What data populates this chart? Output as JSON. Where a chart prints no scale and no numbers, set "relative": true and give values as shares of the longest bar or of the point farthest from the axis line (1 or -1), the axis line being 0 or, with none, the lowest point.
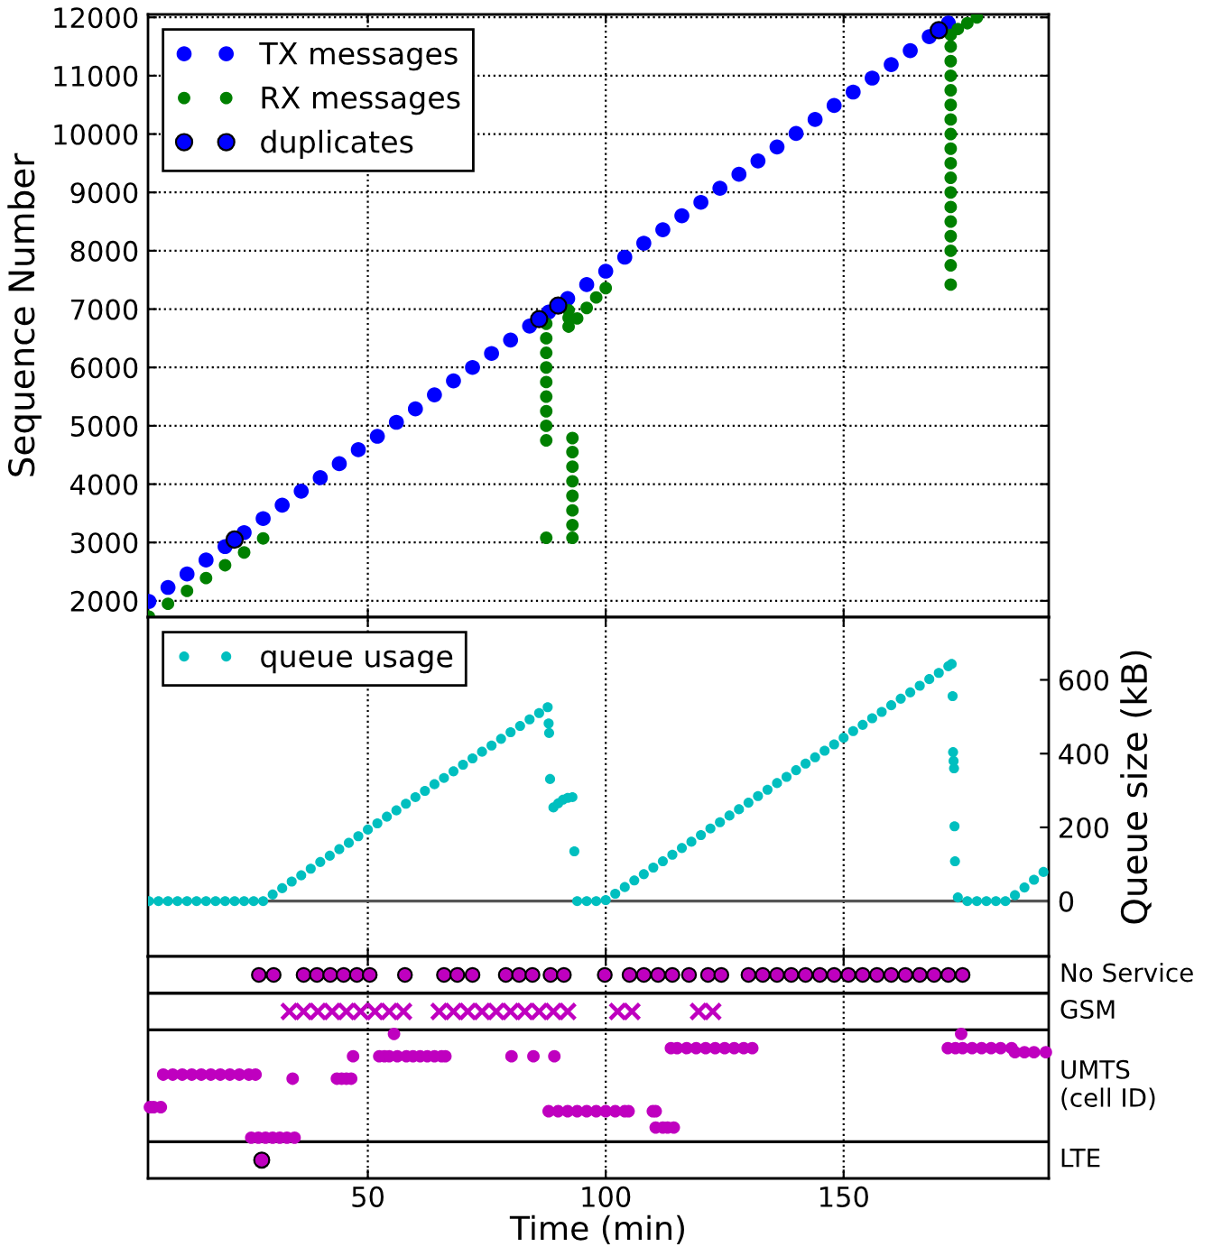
{
  "chart_data": [
    {
      "type": "scatter",
      "ylabel": "Sequence Number",
      "xlim": [
        3.8,
        193.1
      ],
      "xticks": [
        50,
        100,
        150
      ],
      "ylim": [
        1720,
        12050
      ],
      "yticks": [
        2000,
        3000,
        4000,
        5000,
        6000,
        7000,
        8000,
        9000,
        10000,
        11000,
        12000
      ],
      "grid": true,
      "legend": "top left",
      "tick_labels": "y",
      "marker": "circle",
      "series": [
        {
          "name": "TX messages",
          "color": "#0000ff",
          "x": [
            4,
            8,
            12,
            16,
            20,
            24,
            28,
            32,
            36,
            40,
            44,
            48,
            52,
            56,
            60,
            64,
            68,
            72,
            76,
            80,
            84,
            88,
            92,
            96,
            100,
            104,
            108,
            112,
            116,
            120,
            124,
            128,
            132,
            136,
            140,
            144,
            148,
            152,
            156,
            160,
            164,
            168,
            172
          ],
          "values": [
            1990,
            2230,
            2460,
            2700,
            2930,
            3170,
            3410,
            3640,
            3880,
            4110,
            4350,
            4590,
            4820,
            5060,
            5290,
            5530,
            5770,
            6000,
            6240,
            6470,
            6710,
            6950,
            7180,
            7420,
            7650,
            7890,
            8130,
            8360,
            8600,
            8830,
            9070,
            9310,
            9540,
            9780,
            10010,
            10250,
            10490,
            10720,
            10960,
            11190,
            11430,
            11670,
            11900
          ]
        },
        {
          "name": "RX messages",
          "color": "#008000",
          "x": [
            4,
            8,
            12,
            16,
            20,
            24,
            28,
            87.5,
            87.5,
            87.5,
            87.5,
            87.5,
            87.5,
            87.5,
            87.5,
            87.5,
            87.5,
            93,
            93,
            93,
            93,
            93,
            93,
            93,
            93,
            92.2,
            92.2,
            92.2,
            94,
            96,
            98,
            100,
            172.5,
            172.5,
            172.5,
            172.5,
            172.5,
            172.5,
            172.5,
            172.5,
            172.5,
            172.5,
            172.5,
            172.5,
            172.5,
            172.5,
            172.5,
            172.5,
            172.5,
            172.5,
            174,
            176,
            178
          ],
          "values": [
            1730,
            1950,
            2170,
            2390,
            2610,
            2830,
            3070,
            3080,
            4750,
            5000,
            5250,
            5500,
            5750,
            6000,
            6250,
            6500,
            6750,
            3080,
            3300,
            3550,
            3800,
            4050,
            4300,
            4550,
            4790,
            6700,
            6850,
            6980,
            6840,
            7020,
            7200,
            7360,
            7420,
            7750,
            8000,
            8250,
            8500,
            8750,
            9000,
            9250,
            9500,
            9750,
            10000,
            10250,
            10500,
            10750,
            11000,
            11250,
            11500,
            11700,
            11800,
            11900,
            12000
          ]
        },
        {
          "name": "duplicates",
          "color": "#0000ff",
          "x": [
            22,
            86,
            90,
            170
          ],
          "values": [
            3050,
            6830,
            7060,
            11780
          ]
        }
      ]
    },
    {
      "type": "scatter",
      "ylabel": "Queue size (kB)",
      "xlim": [
        3.8,
        193.1
      ],
      "xticks": [
        50,
        100,
        150
      ],
      "ylim": [
        -150,
        770
      ],
      "yticks": [
        0,
        200,
        400,
        600
      ],
      "grid": "x",
      "legend": "top left",
      "tick_labels": "y",
      "marker": "circle",
      "ref_lines": [
        {
          "axis": "y",
          "value": 0,
          "color": "#555555"
        }
      ],
      "series": [
        {
          "name": "queue usage",
          "color": "#00bfbf",
          "x": [
            4,
            6,
            8,
            10,
            12,
            14,
            16,
            18,
            20,
            22,
            24,
            26,
            28,
            30,
            32,
            34,
            36,
            38,
            40,
            42,
            44,
            46,
            48,
            50,
            52,
            54,
            56,
            58,
            60,
            62,
            64,
            66,
            68,
            70,
            72,
            74,
            76,
            78,
            80,
            82,
            84,
            86,
            87.8,
            88,
            88.1,
            88.3,
            89,
            90,
            91,
            92,
            93,
            93.4,
            94,
            96,
            98,
            100,
            102,
            104,
            106,
            108,
            110,
            112,
            114,
            116,
            118,
            120,
            122,
            124,
            126,
            128,
            130,
            132,
            134,
            136,
            138,
            140,
            142,
            144,
            146,
            148,
            150,
            152,
            154,
            156,
            158,
            160,
            162,
            164,
            166,
            168,
            170,
            172,
            172.7,
            172.9,
            173,
            173.1,
            173.2,
            173.3,
            173.4,
            174,
            176,
            178,
            180,
            182,
            184,
            186,
            188,
            190,
            192
          ],
          "values": [
            0,
            0,
            0,
            0,
            0,
            0,
            0,
            0,
            0,
            0,
            0,
            0,
            0,
            18,
            35,
            53,
            70,
            88,
            106,
            123,
            141,
            158,
            176,
            194,
            211,
            229,
            246,
            264,
            282,
            299,
            317,
            334,
            352,
            370,
            387,
            405,
            422,
            440,
            458,
            475,
            493,
            510,
            526,
            482,
            456,
            331,
            254,
            265,
            275,
            280,
            282,
            135,
            0,
            0,
            0,
            3,
            20,
            38,
            56,
            73,
            91,
            108,
            126,
            144,
            161,
            179,
            197,
            214,
            232,
            249,
            267,
            285,
            302,
            320,
            337,
            355,
            373,
            390,
            408,
            425,
            443,
            461,
            478,
            496,
            513,
            531,
            549,
            566,
            584,
            602,
            619,
            637,
            643,
            556,
            404,
            380,
            360,
            203,
            108,
            10,
            0,
            0,
            0,
            0,
            0,
            16,
            37,
            58,
            79
          ]
        }
      ]
    },
    {
      "type": "scatter",
      "xlabel": "Time (min)",
      "xlim": [
        3.8,
        193.1
      ],
      "xticks": [
        50,
        100,
        150
      ],
      "relative": true,
      "tick_labels": "x",
      "annotations": [
        "No Service",
        "GSM",
        "UMTS\n(cell ID)",
        "LTE"
      ],
      "grid": "x",
      "ref_lines": [
        {
          "axis": "y",
          "value": 0.91,
          "color": "#000000"
        },
        {
          "axis": "y",
          "value": 0.73,
          "color": "#000000"
        },
        {
          "axis": "y",
          "value": 0.18,
          "color": "#000000"
        }
      ],
      "series": [
        {
          "color": "#bf00bf",
          "marker": "circle",
          "x": [
            27.1,
            30.2,
            36.5,
            39.3,
            42.1,
            44.9,
            47.7,
            50.4,
            57.8,
            66,
            68.8,
            72,
            79,
            81.8,
            84.6,
            88.4,
            91.2,
            99.8,
            105,
            108,
            111,
            114,
            117.5,
            121.5,
            124.3,
            130,
            133,
            136,
            139,
            142,
            145,
            148,
            151,
            154,
            157,
            160,
            163,
            166,
            169,
            172,
            175
          ],
          "values": [
            1,
            1,
            1,
            1,
            1,
            1,
            1,
            1,
            1,
            1,
            1,
            1,
            1,
            1,
            1,
            1,
            1,
            1,
            1,
            1,
            1,
            1,
            1,
            1,
            1,
            1,
            1,
            1,
            1,
            1,
            1,
            1,
            1,
            1,
            1,
            1,
            1,
            1,
            1,
            1,
            1
          ]
        },
        {
          "color": "#bf00bf",
          "marker": "cross",
          "x": [
            33.5,
            36.5,
            39.5,
            42.5,
            45.5,
            48.5,
            51.5,
            54.5,
            57.5,
            65,
            68,
            71,
            74,
            77,
            80,
            83,
            86,
            89,
            92,
            102.5,
            105.5,
            119.5,
            122.5
          ],
          "values": [
            0.82,
            0.82,
            0.82,
            0.82,
            0.82,
            0.82,
            0.82,
            0.82,
            0.82,
            0.82,
            0.82,
            0.82,
            0.82,
            0.82,
            0.82,
            0.82,
            0.82,
            0.82,
            0.82,
            0.82,
            0.82,
            0.82,
            0.82
          ]
        },
        {
          "color": "#bf00bf",
          "marker": "circle",
          "x": [
            4.2,
            5,
            6.5,
            7,
            9,
            11,
            13,
            15,
            17,
            19,
            21,
            23,
            25,
            26.4,
            25.5,
            27,
            28.5,
            30,
            31.5,
            33,
            34.6,
            34.2,
            43.5,
            44.5,
            45.5,
            46.5,
            46.9,
            52.4,
            53.5,
            54.5,
            56.2,
            55.5,
            58.1,
            59.5,
            61,
            62.5,
            64,
            65.5,
            66.3,
            80.2,
            84.8,
            89.2,
            88,
            90,
            92,
            94,
            96,
            98,
            100,
            102,
            104,
            104.8,
            109.9,
            110.5,
            110.5,
            112,
            113,
            114.3,
            113.7,
            115,
            117,
            119,
            121,
            123,
            125,
            127,
            129,
            130.8,
            174.7,
            171.9,
            173.5,
            175,
            177,
            179,
            181,
            183,
            185.3,
            186,
            188,
            190,
            192.5
          ],
          "values": [
            0.35,
            0.35,
            0.35,
            0.51,
            0.51,
            0.51,
            0.51,
            0.51,
            0.51,
            0.51,
            0.51,
            0.51,
            0.51,
            0.51,
            0.2,
            0.2,
            0.2,
            0.2,
            0.2,
            0.2,
            0.2,
            0.49,
            0.49,
            0.49,
            0.49,
            0.49,
            0.6,
            0.6,
            0.6,
            0.6,
            0.6,
            0.71,
            0.6,
            0.6,
            0.6,
            0.6,
            0.6,
            0.6,
            0.6,
            0.6,
            0.6,
            0.6,
            0.33,
            0.33,
            0.33,
            0.33,
            0.33,
            0.33,
            0.33,
            0.33,
            0.33,
            0.33,
            0.33,
            0.33,
            0.25,
            0.25,
            0.25,
            0.25,
            0.64,
            0.64,
            0.64,
            0.64,
            0.64,
            0.64,
            0.64,
            0.64,
            0.64,
            0.64,
            0.71,
            0.64,
            0.64,
            0.64,
            0.64,
            0.64,
            0.64,
            0.64,
            0.64,
            0.62,
            0.62,
            0.62,
            0.62
          ]
        },
        {
          "color": "#bf00bf",
          "x": [
            27.7
          ],
          "values": [
            0.09
          ]
        }
      ]
    }
  ]
}
